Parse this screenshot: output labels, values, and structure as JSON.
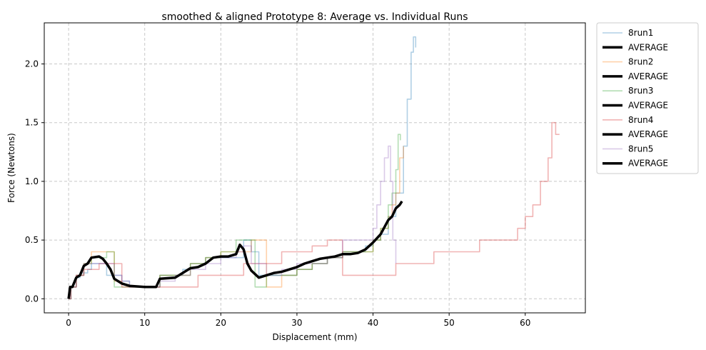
{
  "chart_data": {
    "type": "line",
    "title": "smoothed & aligned Prototype 8: Average vs. Individual Runs",
    "xlabel": "Displacement (mm)",
    "ylabel": "Force (Newtons)",
    "xlim": [
      -3.2,
      67.9
    ],
    "ylim": [
      -0.12,
      2.35
    ],
    "xticks": [
      0,
      10,
      20,
      30,
      40,
      50,
      60
    ],
    "yticks": [
      0.0,
      0.5,
      1.0,
      1.5,
      2.0
    ],
    "xtick_labels": [
      "0",
      "10",
      "20",
      "30",
      "40",
      "50",
      "60"
    ],
    "ytick_labels": [
      "0.0",
      "0.5",
      "1.0",
      "1.5",
      "2.0"
    ],
    "grid": true,
    "legend_position": "outside-top-right",
    "legend": [
      "8run1",
      "AVERAGE",
      "8run2",
      "AVERAGE",
      "8run3",
      "AVERAGE",
      "8run4",
      "AVERAGE",
      "8run5",
      "AVERAGE"
    ],
    "series": [
      {
        "name": "8run1",
        "color": "#1f77b4",
        "x": [
          0,
          0.3,
          1,
          1.5,
          2.5,
          3,
          4,
          5,
          6,
          7,
          8,
          11,
          12,
          13,
          14,
          15,
          16,
          17,
          18,
          20,
          22,
          23,
          24,
          25,
          26,
          28,
          30,
          32,
          34,
          36,
          38,
          39,
          40,
          41,
          42,
          43,
          44,
          44.5,
          45,
          45.3,
          45.6
        ],
        "y": [
          0,
          0.1,
          0.18,
          0.22,
          0.25,
          0.3,
          0.3,
          0.2,
          0.2,
          0.15,
          0.1,
          0.1,
          0.2,
          0.2,
          0.2,
          0.25,
          0.3,
          0.3,
          0.35,
          0.35,
          0.35,
          0.5,
          0.4,
          0.2,
          0.2,
          0.2,
          0.25,
          0.3,
          0.35,
          0.4,
          0.4,
          0.45,
          0.5,
          0.55,
          0.7,
          0.9,
          1.3,
          1.7,
          2.1,
          2.23,
          2.14
        ]
      },
      {
        "name": "AVERAGE",
        "color": "#000000",
        "x": [
          0,
          0.2,
          0.5,
          1,
          1.5,
          2,
          2.5,
          3,
          4,
          4.5,
          5,
          5.5,
          6,
          7,
          8,
          10,
          11.5,
          12,
          14,
          15,
          16,
          17,
          18,
          19,
          20,
          21,
          22,
          22.5,
          23,
          23.5,
          24,
          25,
          26,
          27,
          28,
          29,
          30,
          31,
          32,
          33,
          34,
          35,
          36,
          37,
          38,
          39,
          40,
          41,
          42,
          42.5,
          43,
          43.5,
          43.8
        ],
        "y": [
          0,
          0.1,
          0.1,
          0.18,
          0.2,
          0.28,
          0.3,
          0.35,
          0.36,
          0.34,
          0.3,
          0.25,
          0.17,
          0.13,
          0.11,
          0.1,
          0.1,
          0.17,
          0.18,
          0.22,
          0.26,
          0.27,
          0.3,
          0.35,
          0.36,
          0.36,
          0.38,
          0.46,
          0.42,
          0.3,
          0.24,
          0.18,
          0.2,
          0.22,
          0.23,
          0.25,
          0.27,
          0.3,
          0.32,
          0.34,
          0.35,
          0.36,
          0.38,
          0.38,
          0.39,
          0.42,
          0.48,
          0.55,
          0.67,
          0.7,
          0.77,
          0.8,
          0.83
        ]
      },
      {
        "name": "8run2",
        "color": "#ff7f0e",
        "x": [
          0,
          0.3,
          1,
          2,
          3,
          5,
          6,
          7,
          8,
          11,
          12,
          14,
          16,
          18,
          20,
          22,
          24,
          25,
          26,
          28,
          30,
          32,
          34,
          36,
          38,
          40,
          41,
          42,
          42.5,
          43,
          43.5,
          44
        ],
        "y": [
          0,
          0.1,
          0.2,
          0.3,
          0.4,
          0.4,
          0.15,
          0.12,
          0.1,
          0.1,
          0.2,
          0.2,
          0.3,
          0.35,
          0.4,
          0.4,
          0.5,
          0.5,
          0.1,
          0.2,
          0.25,
          0.3,
          0.35,
          0.4,
          0.4,
          0.5,
          0.6,
          0.7,
          0.8,
          0.9,
          1.2,
          1.3
        ]
      },
      {
        "name": "8run3",
        "color": "#2ca02c",
        "x": [
          0,
          0.3,
          1,
          2,
          3,
          5,
          6,
          7,
          8,
          11,
          12,
          14,
          16,
          18,
          20,
          22,
          24,
          24.5,
          25.5,
          26,
          28,
          30,
          32,
          34,
          36,
          38,
          39,
          40,
          41,
          42,
          42.5,
          43,
          43.3,
          43.6
        ],
        "y": [
          0,
          0.1,
          0.2,
          0.3,
          0.35,
          0.4,
          0.1,
          0.1,
          0.1,
          0.1,
          0.2,
          0.2,
          0.3,
          0.35,
          0.4,
          0.5,
          0.5,
          0.1,
          0.1,
          0.2,
          0.2,
          0.25,
          0.3,
          0.35,
          0.4,
          0.4,
          0.4,
          0.5,
          0.6,
          0.8,
          0.9,
          1.1,
          1.4,
          1.35
        ]
      },
      {
        "name": "8run4",
        "color": "#d62728",
        "x": [
          0,
          0.3,
          1,
          2,
          4,
          6,
          7,
          8,
          10,
          12,
          14,
          16,
          17,
          20,
          22,
          23,
          26,
          28,
          30,
          32,
          34,
          35.5,
          36,
          40,
          42,
          43,
          44,
          46,
          48,
          50,
          52,
          54,
          56,
          58,
          59,
          60,
          61,
          62,
          63,
          63.5,
          64,
          64.5
        ],
        "y": [
          0,
          0.1,
          0.2,
          0.25,
          0.3,
          0.3,
          0.1,
          0.1,
          0.1,
          0.1,
          0.1,
          0.1,
          0.2,
          0.2,
          0.2,
          0.3,
          0.3,
          0.4,
          0.4,
          0.45,
          0.5,
          0.5,
          0.2,
          0.2,
          0.2,
          0.3,
          0.3,
          0.3,
          0.4,
          0.4,
          0.4,
          0.5,
          0.5,
          0.5,
          0.6,
          0.7,
          0.8,
          1.0,
          1.2,
          1.5,
          1.4,
          1.4
        ]
      },
      {
        "name": "8run5",
        "color": "#9467bd",
        "x": [
          0,
          0.3,
          1,
          2,
          3,
          5,
          6,
          7,
          8,
          11,
          12,
          14,
          16,
          18,
          20,
          22,
          23,
          24,
          26,
          28,
          30,
          32,
          34,
          36,
          38,
          39,
          40,
          40.5,
          41,
          41.5,
          42,
          42.3,
          42.6,
          43
        ],
        "y": [
          0,
          0.1,
          0.2,
          0.3,
          0.3,
          0.3,
          0.2,
          0.15,
          0.1,
          0.1,
          0.15,
          0.2,
          0.25,
          0.3,
          0.35,
          0.4,
          0.45,
          0.3,
          0.2,
          0.25,
          0.3,
          0.3,
          0.35,
          0.5,
          0.5,
          0.5,
          0.6,
          0.8,
          1.0,
          1.2,
          1.3,
          1.0,
          0.5,
          0.3
        ]
      }
    ]
  }
}
